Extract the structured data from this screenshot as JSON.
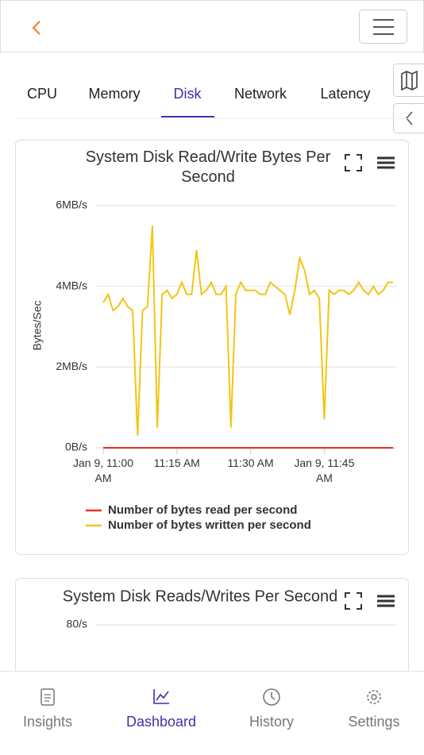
{
  "tabs": [
    "CPU",
    "Memory",
    "Disk",
    "Network",
    "Latency"
  ],
  "active_tab": 2,
  "chart_data": [
    {
      "type": "line",
      "title": "System Disk Read/Write Bytes Per Second",
      "ylabel": "Bytes/Sec",
      "x": [
        "11:00",
        "11:01",
        "11:02",
        "11:03",
        "11:04",
        "11:05",
        "11:06",
        "11:07",
        "11:08",
        "11:09",
        "11:10",
        "11:11",
        "11:12",
        "11:13",
        "11:14",
        "11:15",
        "11:16",
        "11:17",
        "11:18",
        "11:19",
        "11:20",
        "11:21",
        "11:22",
        "11:23",
        "11:24",
        "11:25",
        "11:26",
        "11:27",
        "11:28",
        "11:29",
        "11:30",
        "11:31",
        "11:32",
        "11:33",
        "11:34",
        "11:35",
        "11:36",
        "11:37",
        "11:38",
        "11:39",
        "11:40",
        "11:41",
        "11:42",
        "11:43",
        "11:44",
        "11:45",
        "11:46",
        "11:47",
        "11:48",
        "11:49",
        "11:50",
        "11:51",
        "11:52",
        "11:53",
        "11:54",
        "11:55",
        "11:56",
        "11:57",
        "11:58",
        "11:59"
      ],
      "xlim": [
        "11:00",
        "11:59"
      ],
      "xticks": [
        {
          "value": "11:00",
          "label": "Jan 9, 11:00 AM"
        },
        {
          "value": "11:15",
          "label": "11:15 AM"
        },
        {
          "value": "11:30",
          "label": "11:30 AM"
        },
        {
          "value": "11:45",
          "label": "Jan 9, 11:45 AM"
        }
      ],
      "ylim": [
        0,
        6
      ],
      "yticks": [
        {
          "value": 0,
          "label": "0B/s"
        },
        {
          "value": 2,
          "label": "2MB/s"
        },
        {
          "value": 4,
          "label": "4MB/s"
        },
        {
          "value": 6,
          "label": "6MB/s"
        }
      ],
      "grid": true,
      "series": [
        {
          "name": "Number of bytes read per second",
          "color": "#e8362d",
          "values": [
            0,
            0,
            0,
            0,
            0,
            0,
            0,
            0,
            0,
            0,
            0,
            0,
            0,
            0,
            0,
            0,
            0,
            0,
            0,
            0,
            0,
            0,
            0,
            0,
            0,
            0,
            0,
            0,
            0,
            0,
            0,
            0,
            0,
            0,
            0,
            0,
            0,
            0,
            0,
            0,
            0,
            0,
            0,
            0,
            0,
            0,
            0,
            0,
            0,
            0,
            0,
            0,
            0,
            0,
            0,
            0,
            0,
            0,
            0,
            0
          ]
        },
        {
          "name": "Number of bytes written per second",
          "color": "#f2c512",
          "values": [
            3.6,
            3.8,
            3.4,
            3.5,
            3.7,
            3.5,
            3.4,
            0.3,
            3.4,
            3.5,
            5.5,
            0.5,
            3.8,
            3.9,
            3.7,
            3.8,
            4.1,
            3.8,
            3.8,
            4.9,
            3.8,
            3.9,
            4.1,
            3.8,
            3.8,
            4.0,
            0.5,
            3.8,
            4.1,
            3.9,
            3.9,
            3.9,
            3.8,
            3.8,
            4.1,
            4.0,
            3.9,
            3.8,
            3.3,
            3.9,
            4.7,
            4.4,
            3.8,
            3.9,
            3.7,
            0.7,
            3.9,
            3.8,
            3.9,
            3.9,
            3.8,
            3.9,
            4.1,
            3.9,
            3.8,
            4.0,
            3.8,
            3.9,
            4.1,
            4.1
          ]
        }
      ]
    },
    {
      "type": "line",
      "title": "System Disk Reads/Writes Per Second",
      "yticks": [
        {
          "value": 80,
          "label": "80/s"
        }
      ],
      "grid": true
    }
  ],
  "nav": [
    "Insights",
    "Dashboard",
    "History",
    "Settings"
  ],
  "active_nav": 1
}
